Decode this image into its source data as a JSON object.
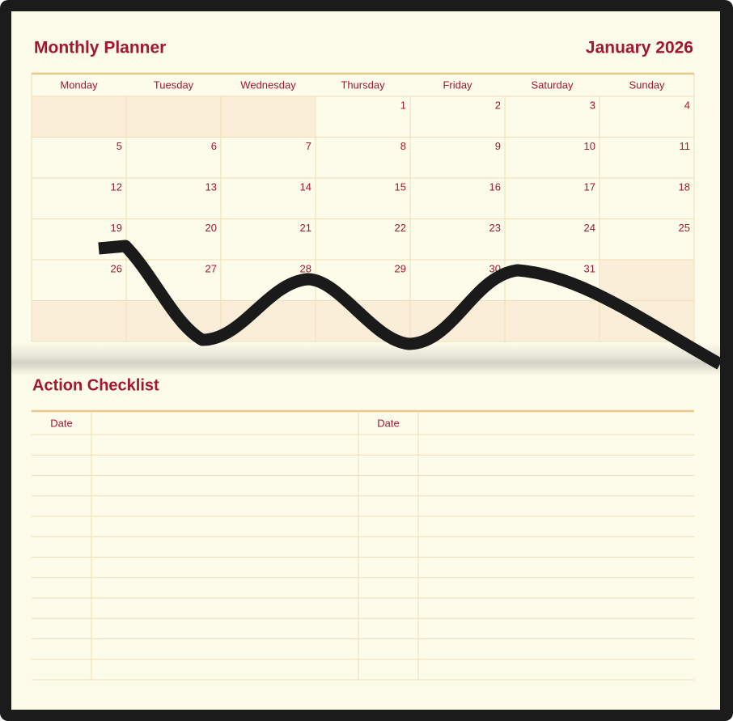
{
  "header": {
    "title": "Monthly Planner",
    "month": "January 2026"
  },
  "calendar": {
    "weekdays": [
      "Monday",
      "Tuesday",
      "Wednesday",
      "Thursday",
      "Friday",
      "Saturday",
      "Sunday"
    ],
    "weeks": [
      [
        null,
        null,
        null,
        1,
        2,
        3,
        4
      ],
      [
        5,
        6,
        7,
        8,
        9,
        10,
        11
      ],
      [
        12,
        13,
        14,
        15,
        16,
        17,
        18
      ],
      [
        19,
        20,
        21,
        22,
        23,
        24,
        25
      ],
      [
        26,
        27,
        28,
        29,
        30,
        31,
        null
      ],
      [
        null,
        null,
        null,
        null,
        null,
        null,
        null
      ]
    ]
  },
  "checklist": {
    "title": "Action Checklist",
    "columns": [
      "Date",
      "Date"
    ]
  }
}
